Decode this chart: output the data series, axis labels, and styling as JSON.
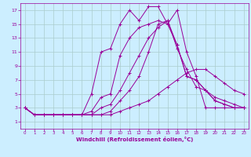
{
  "xlabel": "Windchill (Refroidissement éolien,°C)",
  "background_color": "#cceeff",
  "line_color": "#990099",
  "grid_color": "#aacccc",
  "xlim": [
    -0.5,
    23.5
  ],
  "ylim": [
    0,
    18
  ],
  "xticks": [
    0,
    1,
    2,
    3,
    4,
    5,
    6,
    7,
    8,
    9,
    10,
    11,
    12,
    13,
    14,
    15,
    16,
    17,
    18,
    19,
    20,
    21,
    22,
    23
  ],
  "yticks": [
    1,
    3,
    5,
    7,
    9,
    11,
    13,
    15,
    17
  ],
  "series": [
    [
      3.0,
      2.0,
      2.0,
      2.0,
      2.0,
      2.0,
      2.0,
      5.0,
      11.0,
      11.5,
      15.0,
      17.0,
      15.5,
      17.5,
      17.5,
      15.0,
      17.0,
      11.0,
      7.5,
      3.0,
      3.0,
      3.0,
      3.0,
      3.0
    ],
    [
      3.0,
      2.0,
      2.0,
      2.0,
      2.0,
      2.0,
      2.0,
      2.5,
      4.5,
      5.0,
      10.5,
      13.0,
      14.5,
      15.0,
      15.5,
      15.0,
      12.0,
      7.5,
      7.0,
      5.5,
      4.0,
      3.5,
      3.0,
      3.0
    ],
    [
      3.0,
      2.0,
      2.0,
      2.0,
      2.0,
      2.0,
      2.0,
      2.0,
      3.0,
      3.5,
      5.5,
      8.0,
      10.5,
      13.0,
      14.5,
      15.5,
      12.0,
      7.5,
      7.0,
      5.5,
      4.0,
      3.5,
      3.0,
      3.0
    ],
    [
      3.0,
      2.0,
      2.0,
      2.0,
      2.0,
      2.0,
      2.0,
      2.0,
      2.0,
      2.5,
      4.0,
      5.5,
      7.5,
      11.0,
      15.0,
      15.5,
      11.5,
      8.5,
      6.0,
      5.5,
      4.5,
      4.0,
      3.5,
      3.0
    ],
    [
      3.0,
      2.0,
      2.0,
      2.0,
      2.0,
      2.0,
      2.0,
      2.0,
      2.0,
      2.0,
      2.5,
      3.0,
      3.5,
      4.0,
      5.0,
      6.0,
      7.0,
      8.0,
      8.5,
      8.5,
      7.5,
      6.5,
      5.5,
      5.0
    ]
  ]
}
